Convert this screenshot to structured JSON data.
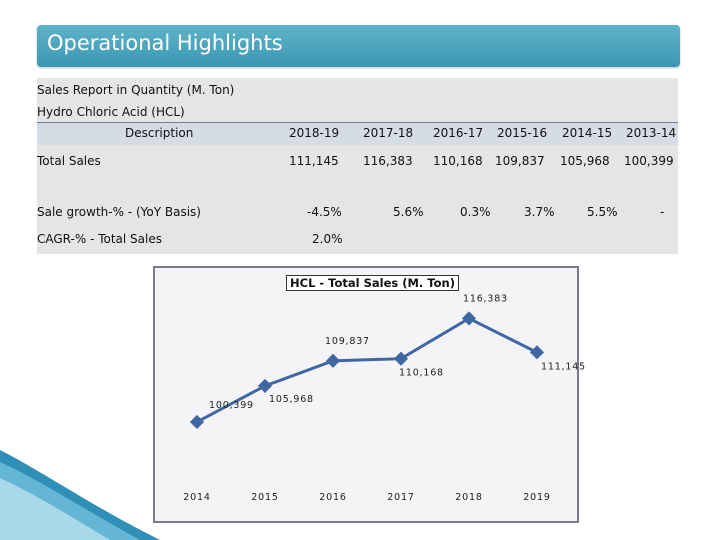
{
  "header": {
    "title": "Operational Highlights"
  },
  "report": {
    "subtitle": "Sales Report in Quantity (M. Ton)",
    "product": "Hydro Chloric Acid (HCL)",
    "description_header": "Description",
    "years": [
      "2018-19",
      "2017-18",
      "2016-17",
      "2015-16",
      "2014-15",
      "2013-14"
    ],
    "total_sales_label": "Total Sales",
    "total_sales": [
      "111,145",
      "116,383",
      "110,168",
      "109,837",
      "105,968",
      "100,399"
    ],
    "growth_label": "Sale growth-% -  (YoY Basis)",
    "growth": [
      "-4.5%",
      "5.6%",
      "0.3%",
      "3.7%",
      "5.5%",
      "-"
    ],
    "cagr_label": "CAGR-% - Total Sales",
    "cagr": "2.0%"
  },
  "chart_data": {
    "type": "line",
    "title": "HCL - Total Sales (M. Ton)",
    "categories": [
      "2014",
      "2015",
      "2016",
      "2017",
      "2018",
      "2019"
    ],
    "series": [
      {
        "name": "Total Sales",
        "values": [
          100399,
          105968,
          109837,
          110168,
          116383,
          111145
        ]
      }
    ],
    "data_labels": [
      "100,399",
      "105,968",
      "109,837",
      "110,168",
      "116,383",
      "111,145"
    ],
    "ylim": [
      97000,
      120000
    ],
    "xlabel": "",
    "ylabel": "",
    "line_color": "#3f67a4"
  }
}
